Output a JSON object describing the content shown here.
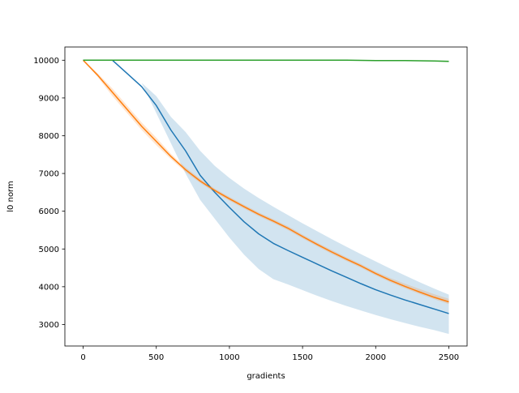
{
  "chart_data": {
    "type": "line",
    "title": "",
    "xlabel": "gradients",
    "ylabel": "l0 norm",
    "xlim": [
      -125,
      2625
    ],
    "ylim": [
      2430,
      10350
    ],
    "xticks": [
      0,
      500,
      1000,
      1500,
      2000,
      2500
    ],
    "yticks": [
      3000,
      4000,
      5000,
      6000,
      7000,
      8000,
      9000,
      10000
    ],
    "grid": false,
    "legend": "none",
    "series": [
      {
        "color": "#1f77b4",
        "x": [
          0,
          200,
          300,
          400,
          500,
          600,
          700,
          800,
          900,
          1000,
          1100,
          1200,
          1300,
          1400,
          1500,
          1600,
          1700,
          1800,
          1900,
          2000,
          2100,
          2200,
          2300,
          2400,
          2500
        ],
        "y": [
          10000,
          10000,
          9650,
          9300,
          8800,
          8150,
          7600,
          6950,
          6500,
          6100,
          5720,
          5400,
          5150,
          4960,
          4780,
          4600,
          4420,
          4250,
          4080,
          3920,
          3780,
          3650,
          3530,
          3410,
          3290
        ],
        "band_low": [
          10000,
          10000,
          9700,
          9400,
          8600,
          7800,
          7000,
          6300,
          5800,
          5300,
          4850,
          4470,
          4200,
          4060,
          3910,
          3760,
          3620,
          3490,
          3370,
          3250,
          3140,
          3040,
          2940,
          2850,
          2750
        ],
        "band_high": [
          10000,
          10000,
          9700,
          9400,
          9050,
          8500,
          8100,
          7600,
          7200,
          6880,
          6600,
          6350,
          6120,
          5900,
          5680,
          5470,
          5260,
          5060,
          4860,
          4670,
          4480,
          4300,
          4120,
          3950,
          3790
        ]
      },
      {
        "color": "#ff7f0e",
        "x": [
          0,
          100,
          200,
          300,
          400,
          500,
          600,
          700,
          800,
          900,
          1000,
          1100,
          1200,
          1300,
          1400,
          1500,
          1600,
          1700,
          1800,
          1900,
          2000,
          2100,
          2200,
          2300,
          2400,
          2500
        ],
        "y": [
          10000,
          9600,
          9150,
          8700,
          8250,
          7850,
          7450,
          7100,
          6800,
          6550,
          6330,
          6120,
          5920,
          5740,
          5550,
          5330,
          5120,
          4920,
          4730,
          4550,
          4350,
          4170,
          4010,
          3860,
          3720,
          3600
        ],
        "band_low": [
          10000,
          9550,
          9050,
          8600,
          8150,
          7750,
          7380,
          7040,
          6750,
          6500,
          6280,
          6070,
          5870,
          5690,
          5500,
          5280,
          5070,
          4870,
          4680,
          4500,
          4300,
          4120,
          3960,
          3810,
          3670,
          3540
        ],
        "band_high": [
          10000,
          9650,
          9250,
          8800,
          8350,
          7950,
          7520,
          7160,
          6860,
          6600,
          6380,
          6170,
          5970,
          5790,
          5600,
          5380,
          5170,
          4970,
          4780,
          4600,
          4400,
          4230,
          4080,
          3940,
          3800,
          3680
        ]
      },
      {
        "color": "#2ca02c",
        "x": [
          0,
          500,
          1000,
          1500,
          1800,
          1900,
          2000,
          2100,
          2200,
          2300,
          2400,
          2500
        ],
        "y": [
          10000,
          10000,
          10000,
          10000,
          10000,
          9995,
          9990,
          9990,
          9990,
          9985,
          9980,
          9970
        ],
        "band_low": [
          10000,
          10000,
          10000,
          10000,
          9995,
          9990,
          9985,
          9985,
          9985,
          9975,
          9965,
          9950
        ],
        "band_high": [
          10000,
          10000,
          10000,
          10000,
          10000,
          10000,
          10000,
          10000,
          10000,
          9995,
          9995,
          9990
        ]
      }
    ]
  }
}
